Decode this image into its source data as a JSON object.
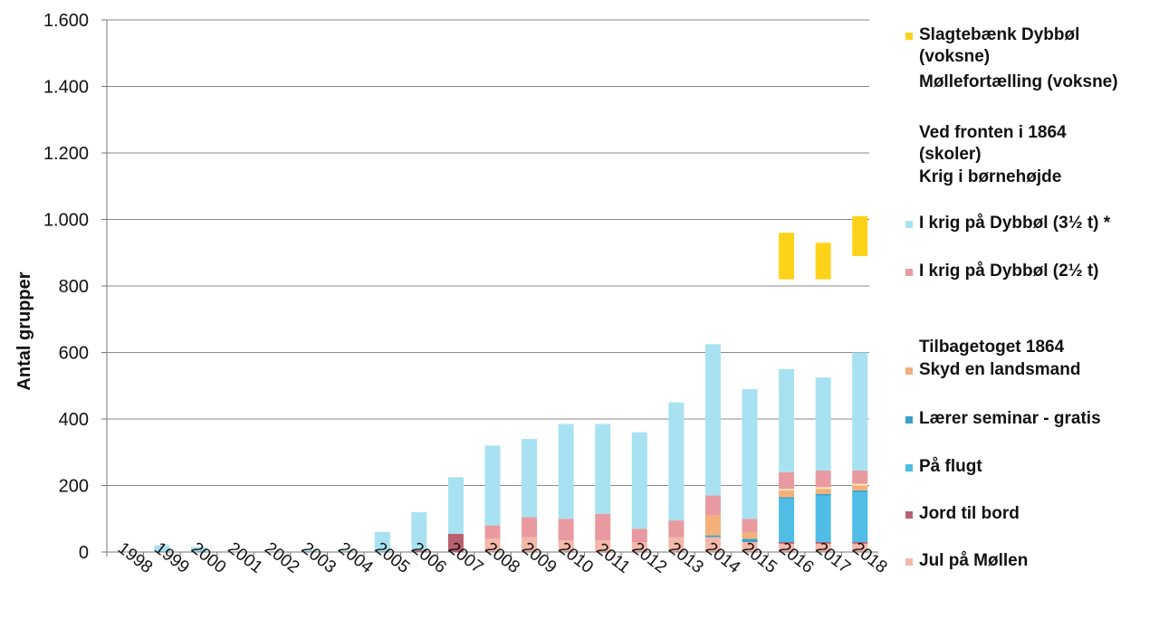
{
  "chart_data": {
    "type": "bar",
    "stacked": true,
    "ylabel": "Antal grupper",
    "xlabel": "",
    "ylim": [
      0,
      1600
    ],
    "yticks": [
      0,
      200,
      400,
      600,
      800,
      1000,
      1200,
      1400,
      1600
    ],
    "ytick_labels": [
      "0",
      "200",
      "400",
      "600",
      "800",
      "1.000",
      "1.200",
      "1.400",
      "1.600"
    ],
    "grid": true,
    "legend_position": "right",
    "categories": [
      "1998",
      "1999",
      "2000",
      "2001",
      "2002",
      "2003",
      "2004",
      "2005",
      "2006",
      "2007",
      "2008",
      "2009",
      "2010",
      "2011",
      "2012",
      "2013",
      "2014",
      "2015",
      "2016",
      "2017",
      "2018"
    ],
    "series": [
      {
        "name": "Jul på Møllen",
        "color": "#f4b8a8",
        "values": [
          0,
          0,
          0,
          0,
          0,
          0,
          0,
          0,
          0,
          0,
          40,
          45,
          35,
          35,
          30,
          45,
          45,
          30,
          25,
          25,
          25
        ]
      },
      {
        "name": "Jord til bord",
        "color": "#b86070",
        "values": [
          0,
          0,
          0,
          0,
          0,
          0,
          0,
          0,
          5,
          55,
          0,
          0,
          0,
          0,
          0,
          0,
          0,
          0,
          5,
          5,
          5
        ]
      },
      {
        "name": "På flugt",
        "color": "#4fbde6",
        "values": [
          0,
          0,
          0,
          0,
          0,
          0,
          0,
          0,
          0,
          0,
          0,
          0,
          0,
          0,
          0,
          0,
          0,
          0,
          130,
          140,
          150
        ]
      },
      {
        "name": "Lærer seminar - gratis",
        "color": "#3aa0c8",
        "values": [
          0,
          0,
          0,
          0,
          0,
          0,
          0,
          0,
          0,
          0,
          0,
          0,
          0,
          0,
          0,
          0,
          5,
          10,
          5,
          5,
          5
        ]
      },
      {
        "name": "Skyd en landsmand",
        "color": "#f5b07a",
        "values": [
          0,
          0,
          0,
          0,
          0,
          0,
          0,
          0,
          0,
          0,
          0,
          0,
          0,
          0,
          0,
          0,
          60,
          20,
          20,
          15,
          15
        ]
      },
      {
        "name": "Tilbagetoget 1864",
        "color": "#fbe9a8",
        "values": [
          0,
          0,
          0,
          0,
          0,
          0,
          0,
          0,
          0,
          0,
          0,
          0,
          0,
          0,
          0,
          0,
          0,
          0,
          5,
          5,
          5
        ]
      },
      {
        "name": "I krig på Dybbøl (2½ t)",
        "color": "#e89aa0",
        "values": [
          0,
          0,
          0,
          0,
          0,
          0,
          0,
          0,
          0,
          0,
          40,
          60,
          65,
          80,
          40,
          50,
          60,
          40,
          50,
          50,
          40
        ]
      },
      {
        "name": "I krig på Dybbøl (3½ t) *",
        "color": "#a8e2f2",
        "values": [
          0,
          20,
          15,
          0,
          0,
          5,
          5,
          60,
          115,
          170,
          240,
          235,
          285,
          270,
          290,
          355,
          455,
          390,
          310,
          280,
          355
        ]
      },
      {
        "name": "Krig i børnehøjde",
        "color": "#fff9d8",
        "values": [
          0,
          0,
          0,
          0,
          0,
          0,
          0,
          0,
          0,
          0,
          0,
          0,
          0,
          0,
          0,
          0,
          0,
          0,
          0,
          0,
          0
        ]
      },
      {
        "name": "Ved fronten i 1864 (skoler)",
        "color": "#fffbe6",
        "values": [
          0,
          0,
          0,
          0,
          0,
          0,
          0,
          0,
          0,
          0,
          0,
          0,
          0,
          0,
          0,
          0,
          0,
          0,
          0,
          0,
          0
        ]
      },
      {
        "name": "Møllefortælling (voksne)",
        "color": "#fff4c8",
        "values": [
          0,
          0,
          0,
          0,
          0,
          0,
          0,
          0,
          0,
          0,
          0,
          0,
          0,
          0,
          0,
          0,
          0,
          0,
          0,
          0,
          0
        ]
      },
      {
        "name": "Slagtebænk Dybbøl (voksne)",
        "color": "#ffd21a",
        "values": [
          0,
          0,
          0,
          0,
          0,
          0,
          0,
          0,
          0,
          0,
          0,
          0,
          0,
          0,
          0,
          0,
          0,
          0,
          0,
          0,
          0
        ]
      }
    ],
    "floating_segments": [
      {
        "series": "Slagtebænk Dybbøl (voksne)",
        "category": "2016",
        "from": 820,
        "to": 960
      },
      {
        "series": "Slagtebænk Dybbøl (voksne)",
        "category": "2017",
        "from": 820,
        "to": 930
      },
      {
        "series": "Slagtebænk Dybbøl (voksne)",
        "category": "2018",
        "from": 890,
        "to": 1010
      }
    ],
    "legend_items": [
      {
        "label_lines": [
          "Slagtebænk Dybbøl",
          "(voksne)"
        ],
        "color": "#ffd21a"
      },
      {
        "label_lines": [
          "Møllefortælling (voksne)"
        ],
        "color": ""
      },
      {
        "label_lines": [
          "Ved fronten i 1864",
          "(skoler)"
        ],
        "color": ""
      },
      {
        "label_lines": [
          "Krig i børnehøjde"
        ],
        "color": ""
      },
      {
        "label_lines": [
          "I krig på Dybbøl (3½ t) *"
        ],
        "color": "#a8e2f2"
      },
      {
        "label_lines": [
          "I krig på Dybbøl (2½ t)"
        ],
        "color": "#e89aa0"
      },
      {
        "label_lines": [
          "Tilbagetoget 1864"
        ],
        "color": ""
      },
      {
        "label_lines": [
          "Skyd en landsmand"
        ],
        "color": "#f5b07a"
      },
      {
        "label_lines": [
          "Lærer seminar - gratis"
        ],
        "color": "#3aa0c8"
      },
      {
        "label_lines": [
          "På flugt"
        ],
        "color": "#4fbde6"
      },
      {
        "label_lines": [
          "Jord til bord"
        ],
        "color": "#b86070"
      },
      {
        "label_lines": [
          "Jul på Møllen"
        ],
        "color": "#f4b8a8"
      }
    ]
  }
}
